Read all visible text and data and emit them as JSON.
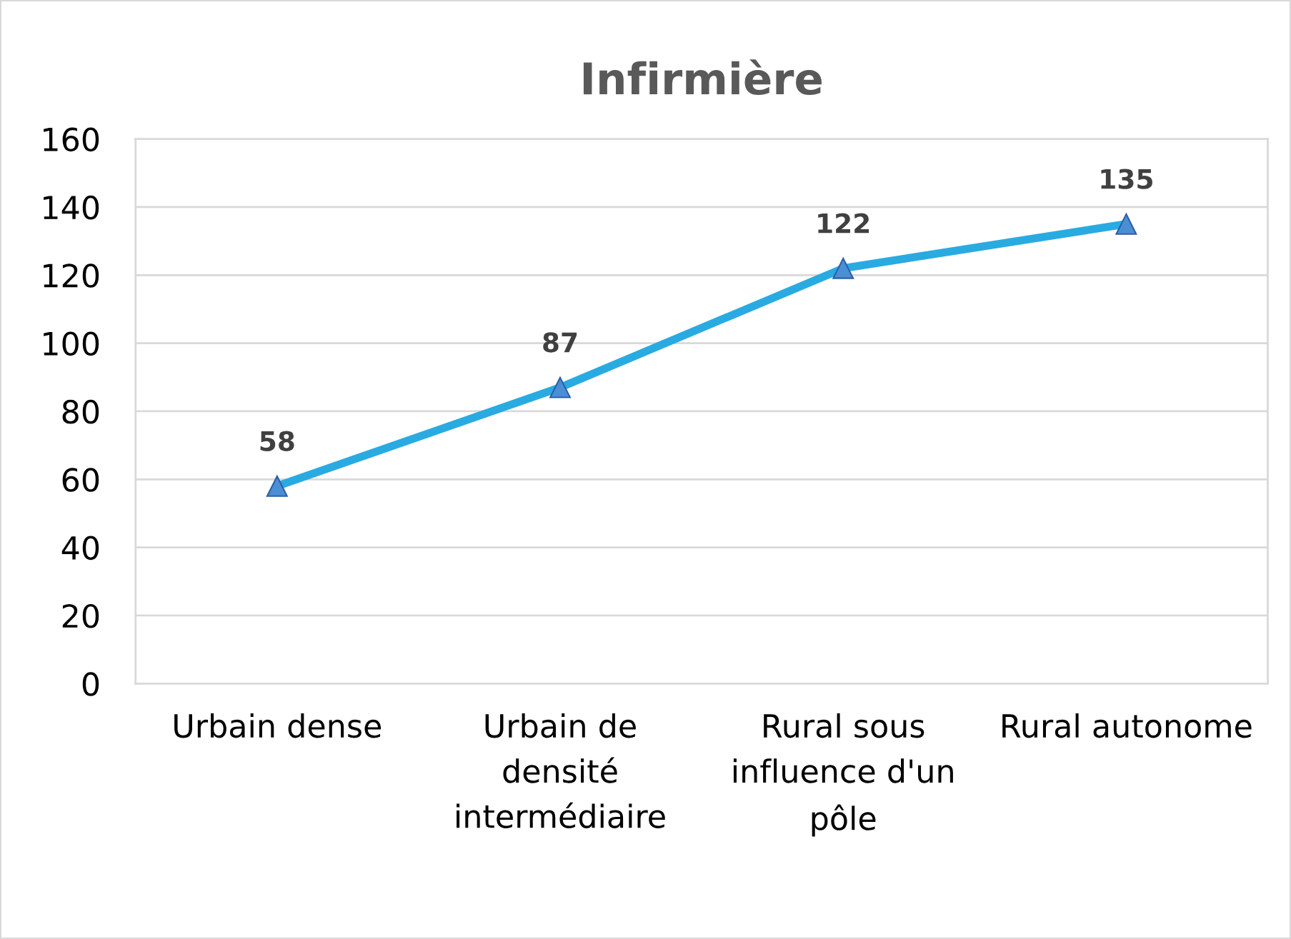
{
  "chart_data": {
    "type": "line",
    "title": "Infirmière",
    "categories": [
      "Urbain dense",
      "Urbain de\ndensité\nintermédiaire",
      "Rural sous\ninfluence d'un\npôle",
      "Rural autonome"
    ],
    "series": [
      {
        "color": "#29abe2",
        "values": [
          58,
          87,
          122,
          135
        ]
      }
    ],
    "ylim": [
      0,
      160
    ],
    "yticks": [
      0,
      20,
      40,
      60,
      80,
      100,
      120,
      140,
      160
    ],
    "grid": "y",
    "marker": "triangle",
    "line_style": "solid",
    "data_labels": true
  }
}
